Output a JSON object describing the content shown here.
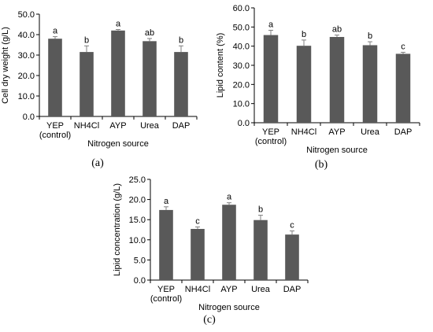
{
  "chart_data": [
    {
      "type": "bar",
      "panel_label": "(a)",
      "categories": [
        "YEP\n(control)",
        "NH4Cl",
        "AYP",
        "Urea",
        "DAP"
      ],
      "values": [
        38.0,
        31.5,
        42.0,
        36.8,
        31.5
      ],
      "errors": [
        1.0,
        3.0,
        0.5,
        1.3,
        3.0
      ],
      "significance": [
        "a",
        "b",
        "a",
        "ab",
        "b"
      ],
      "xlabel": "Nitrogen source",
      "ylabel": "Cell dry weight (g/L)",
      "ylim": [
        0,
        50
      ],
      "yticks": [
        "0.0",
        "10.0",
        "20.0",
        "30.0",
        "40.0",
        "50.0"
      ],
      "bar_color": "#595959",
      "grid": false
    },
    {
      "type": "bar",
      "panel_label": "(b)",
      "categories": [
        "YEP\n(control)",
        "NH4Cl",
        "AYP",
        "Urea",
        "DAP"
      ],
      "values": [
        45.8,
        40.2,
        44.8,
        40.5,
        36.0
      ],
      "errors": [
        2.5,
        3.0,
        1.0,
        1.8,
        0.8
      ],
      "significance": [
        "a",
        "b",
        "ab",
        "b",
        "c"
      ],
      "xlabel": "Nitrogen source",
      "ylabel": "Lipid content (%)",
      "ylim": [
        0,
        60
      ],
      "yticks": [
        "0.0",
        "10.0",
        "20.0",
        "30.0",
        "40.0",
        "50.0",
        "60.0"
      ],
      "bar_color": "#595959",
      "grid": false
    },
    {
      "type": "bar",
      "panel_label": "(c)",
      "categories": [
        "YEP\n(control)",
        "NH4Cl",
        "AYP",
        "Urea",
        "DAP"
      ],
      "values": [
        17.4,
        12.7,
        18.7,
        14.9,
        11.3
      ],
      "errors": [
        0.8,
        0.5,
        0.5,
        1.2,
        0.9
      ],
      "significance": [
        "a",
        "c",
        "a",
        "b",
        "c"
      ],
      "xlabel": "Nitrogen source",
      "ylabel": "Lipid concentration (g/L)",
      "ylim": [
        0,
        25
      ],
      "yticks": [
        "0.0",
        "5.0",
        "10.0",
        "15.0",
        "20.0",
        "25.0"
      ],
      "bar_color": "#595959",
      "grid": false
    }
  ]
}
